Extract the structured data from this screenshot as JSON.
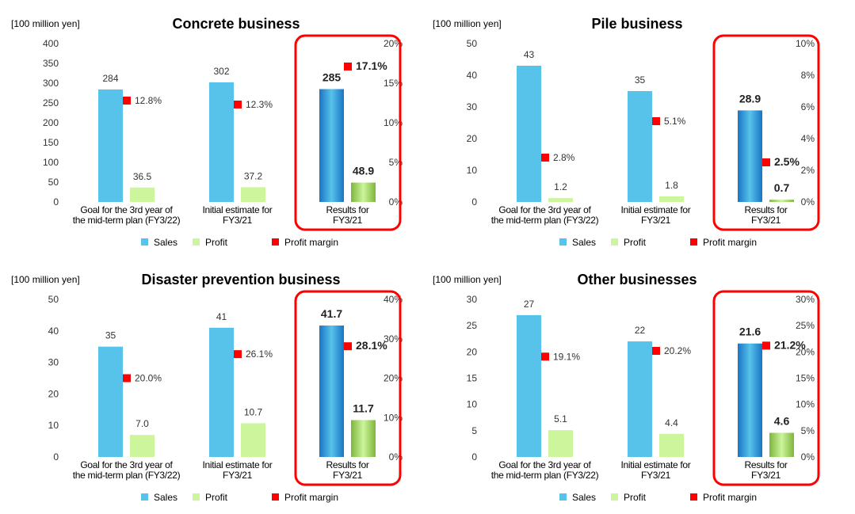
{
  "chart_data": [
    {
      "type": "bar",
      "title": "Concrete business",
      "unit_label": "[100 million yen]",
      "categories": [
        "Goal for the 3rd year of\nthe mid-term plan (FY3/22)",
        "Initial estimate for\nFY3/21",
        "Results for\nFY3/21"
      ],
      "series": [
        {
          "name": "Sales",
          "values": [
            284,
            302,
            285
          ],
          "labels": [
            "284",
            "302",
            "285"
          ]
        },
        {
          "name": "Profit",
          "values": [
            36.5,
            37.2,
            48.9
          ],
          "labels": [
            "36.5",
            "37.2",
            "48.9"
          ]
        },
        {
          "name": "Profit margin",
          "type": "scatter",
          "axis": "right",
          "values": [
            12.8,
            12.3,
            17.1
          ],
          "labels": [
            "12.8%",
            "12.3%",
            "17.1%"
          ]
        }
      ],
      "ylim": [
        0,
        400
      ],
      "yticks": [
        0,
        50,
        100,
        150,
        200,
        250,
        300,
        350,
        400
      ],
      "ylim_right": [
        0,
        20
      ],
      "yticks_right": [
        "0%",
        "5%",
        "10%",
        "15%",
        "20%"
      ],
      "highlight_category": 2,
      "legend": "bottom"
    },
    {
      "type": "bar",
      "title": "Pile business",
      "unit_label": "[100 million yen]",
      "categories": [
        "Goal for the 3rd year of\nthe mid-term plan (FY3/22)",
        "Initial estimate for\nFY3/21",
        "Results for\nFY3/21"
      ],
      "series": [
        {
          "name": "Sales",
          "values": [
            43,
            35,
            28.9
          ],
          "labels": [
            "43",
            "35",
            "28.9"
          ]
        },
        {
          "name": "Profit",
          "values": [
            1.2,
            1.8,
            0.7
          ],
          "labels": [
            "1.2",
            "1.8",
            "0.7"
          ]
        },
        {
          "name": "Profit margin",
          "type": "scatter",
          "axis": "right",
          "values": [
            2.8,
            5.1,
            2.5
          ],
          "labels": [
            "2.8%",
            "5.1%",
            "2.5%"
          ]
        }
      ],
      "ylim": [
        0,
        50
      ],
      "yticks": [
        0,
        10,
        20,
        30,
        40,
        50
      ],
      "ylim_right": [
        0,
        10
      ],
      "yticks_right": [
        "0%",
        "2%",
        "4%",
        "6%",
        "8%",
        "10%"
      ],
      "highlight_category": 2,
      "legend": "bottom"
    },
    {
      "type": "bar",
      "title": "Disaster prevention business",
      "unit_label": "[100 million yen]",
      "categories": [
        "Goal for the 3rd year of\nthe mid-term plan (FY3/22)",
        "Initial estimate for\nFY3/21",
        "Results for\nFY3/21"
      ],
      "series": [
        {
          "name": "Sales",
          "values": [
            35,
            41,
            41.7
          ],
          "labels": [
            "35",
            "41",
            "41.7"
          ]
        },
        {
          "name": "Profit",
          "values": [
            7.0,
            10.7,
            11.7
          ],
          "labels": [
            "7.0",
            "10.7",
            "11.7"
          ]
        },
        {
          "name": "Profit margin",
          "type": "scatter",
          "axis": "right",
          "values": [
            20.0,
            26.1,
            28.1
          ],
          "labels": [
            "20.0%",
            "26.1%",
            "28.1%"
          ]
        }
      ],
      "ylim": [
        0,
        50
      ],
      "yticks": [
        0,
        10,
        20,
        30,
        40,
        50
      ],
      "ylim_right": [
        0,
        40
      ],
      "yticks_right": [
        "0%",
        "10%",
        "20%",
        "30%",
        "40%"
      ],
      "highlight_category": 2,
      "legend": "bottom"
    },
    {
      "type": "bar",
      "title": "Other businesses",
      "unit_label": "[100 million yen]",
      "categories": [
        "Goal for the 3rd year of\nthe mid-term plan (FY3/22)",
        "Initial estimate for\nFY3/21",
        "Results for\nFY3/21"
      ],
      "series": [
        {
          "name": "Sales",
          "values": [
            27,
            22,
            21.6
          ],
          "labels": [
            "27",
            "22",
            "21.6"
          ]
        },
        {
          "name": "Profit",
          "values": [
            5.1,
            4.4,
            4.6
          ],
          "labels": [
            "5.1",
            "4.4",
            "4.6"
          ]
        },
        {
          "name": "Profit margin",
          "type": "scatter",
          "axis": "right",
          "values": [
            19.1,
            20.2,
            21.2
          ],
          "labels": [
            "19.1%",
            "20.2%",
            "21.2%"
          ]
        }
      ],
      "ylim": [
        0,
        30
      ],
      "yticks": [
        0,
        5,
        10,
        15,
        20,
        25,
        30
      ],
      "ylim_right": [
        0,
        30
      ],
      "yticks_right": [
        "0%",
        "5%",
        "10%",
        "15%",
        "20%",
        "25%",
        "30%"
      ],
      "highlight_category": 2,
      "legend": "bottom"
    }
  ],
  "colors": {
    "sales": "#57c3ea",
    "sales_highlight_dark": "#1b74c4",
    "profit": "#ccf59c",
    "profit_highlight_dark": "#7fb53a",
    "margin": "#ff0000",
    "highlight_frame": "#ff0000",
    "axis_text": "#333333"
  }
}
